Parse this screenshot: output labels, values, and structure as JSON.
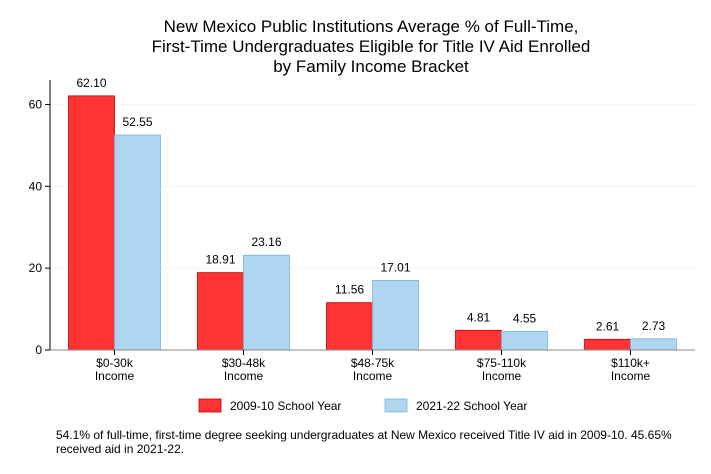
{
  "chart_data": {
    "type": "bar",
    "title": [
      "New Mexico Public Institutions Average % of Full-Time,",
      "First-Time Undergraduates Eligible for Title IV Aid Enrolled",
      "by Family Income Bracket"
    ],
    "categories": [
      [
        "$0-30k",
        "Income"
      ],
      [
        "$30-48k",
        "Income"
      ],
      [
        "$48-75k",
        "Income"
      ],
      [
        "$75-110k",
        "Income"
      ],
      [
        "$110k+",
        "Income"
      ]
    ],
    "series": [
      {
        "name": "2009-10 School Year",
        "color": "#ff3333",
        "values": [
          62.1,
          18.91,
          11.56,
          4.81,
          2.61
        ],
        "labels": [
          "62.10",
          "18.91",
          "11.56",
          "4.81",
          "2.61"
        ]
      },
      {
        "name": "2021-22 School Year",
        "color": "#aed6f1",
        "values": [
          52.55,
          23.16,
          17.01,
          4.55,
          2.73
        ],
        "labels": [
          "52.55",
          "23.16",
          "17.01",
          "4.55",
          "2.73"
        ]
      }
    ],
    "ylim": [
      0,
      65
    ],
    "yticks": [
      "0",
      "20",
      "40",
      "60"
    ],
    "grid": true,
    "legend_position": "bottom"
  },
  "note": "54.1% of full-time, first-time degree seeking undergraduates at New Mexico received Title IV aid in 2009-10. 45.65% received aid in 2021-22."
}
